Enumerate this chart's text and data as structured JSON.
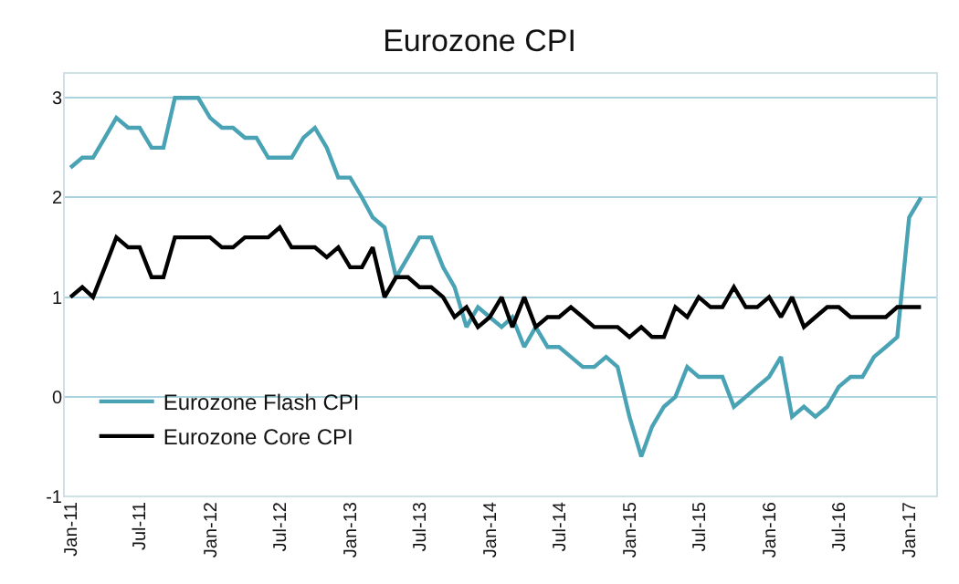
{
  "chart_data": {
    "type": "line",
    "title": "Eurozone CPI",
    "x": [
      "2011-01",
      "2011-02",
      "2011-03",
      "2011-04",
      "2011-05",
      "2011-06",
      "2011-07",
      "2011-08",
      "2011-09",
      "2011-10",
      "2011-11",
      "2011-12",
      "2012-01",
      "2012-02",
      "2012-03",
      "2012-04",
      "2012-05",
      "2012-06",
      "2012-07",
      "2012-08",
      "2012-09",
      "2012-10",
      "2012-11",
      "2012-12",
      "2013-01",
      "2013-02",
      "2013-03",
      "2013-04",
      "2013-05",
      "2013-06",
      "2013-07",
      "2013-08",
      "2013-09",
      "2013-10",
      "2013-11",
      "2013-12",
      "2014-01",
      "2014-02",
      "2014-03",
      "2014-04",
      "2014-05",
      "2014-06",
      "2014-07",
      "2014-08",
      "2014-09",
      "2014-10",
      "2014-11",
      "2014-12",
      "2015-01",
      "2015-02",
      "2015-03",
      "2015-04",
      "2015-05",
      "2015-06",
      "2015-07",
      "2015-08",
      "2015-09",
      "2015-10",
      "2015-11",
      "2015-12",
      "2016-01",
      "2016-02",
      "2016-03",
      "2016-04",
      "2016-05",
      "2016-06",
      "2016-07",
      "2016-08",
      "2016-09",
      "2016-10",
      "2016-11",
      "2016-12",
      "2017-01",
      "2017-02"
    ],
    "series": [
      {
        "name": "Eurozone Flash CPI",
        "color": "#4aa3b5",
        "values": [
          2.3,
          2.4,
          2.4,
          2.6,
          2.8,
          2.7,
          2.7,
          2.5,
          2.5,
          3.0,
          3.0,
          3.0,
          2.8,
          2.7,
          2.7,
          2.6,
          2.6,
          2.4,
          2.4,
          2.4,
          2.6,
          2.7,
          2.5,
          2.2,
          2.2,
          2.0,
          1.8,
          1.7,
          1.2,
          1.4,
          1.6,
          1.6,
          1.3,
          1.1,
          0.7,
          0.9,
          0.8,
          0.7,
          0.8,
          0.5,
          0.7,
          0.5,
          0.5,
          0.4,
          0.3,
          0.3,
          0.4,
          0.3,
          -0.2,
          -0.6,
          -0.3,
          -0.1,
          0.0,
          0.3,
          0.2,
          0.2,
          0.2,
          -0.1,
          0.0,
          0.1,
          0.2,
          0.4,
          -0.2,
          -0.1,
          -0.2,
          -0.1,
          0.1,
          0.2,
          0.2,
          0.4,
          0.5,
          0.6,
          1.8,
          2.0
        ]
      },
      {
        "name": "Eurozone Core CPI",
        "color": "#000000",
        "values": [
          1.0,
          1.1,
          1.0,
          1.3,
          1.6,
          1.5,
          1.5,
          1.2,
          1.2,
          1.6,
          1.6,
          1.6,
          1.6,
          1.5,
          1.5,
          1.6,
          1.6,
          1.6,
          1.7,
          1.5,
          1.5,
          1.5,
          1.4,
          1.5,
          1.3,
          1.3,
          1.5,
          1.0,
          1.2,
          1.2,
          1.1,
          1.1,
          1.0,
          0.8,
          0.9,
          0.7,
          0.8,
          1.0,
          0.7,
          1.0,
          0.7,
          0.8,
          0.8,
          0.9,
          0.8,
          0.7,
          0.7,
          0.7,
          0.6,
          0.7,
          0.6,
          0.6,
          0.9,
          0.8,
          1.0,
          0.9,
          0.9,
          1.1,
          0.9,
          0.9,
          1.0,
          0.8,
          1.0,
          0.7,
          0.8,
          0.9,
          0.9,
          0.8,
          0.8,
          0.8,
          0.8,
          0.9,
          0.9,
          0.9
        ]
      }
    ],
    "xlim": [
      "2010-12-15",
      "2017-03-15"
    ],
    "xticks": [
      {
        "value": "2011-01",
        "label": "Jan-11"
      },
      {
        "value": "2011-07",
        "label": "Jul-11"
      },
      {
        "value": "2012-01",
        "label": "Jan-12"
      },
      {
        "value": "2012-07",
        "label": "Jul-12"
      },
      {
        "value": "2013-01",
        "label": "Jan-13"
      },
      {
        "value": "2013-07",
        "label": "Jul-13"
      },
      {
        "value": "2014-01",
        "label": "Jan-14"
      },
      {
        "value": "2014-07",
        "label": "Jul-14"
      },
      {
        "value": "2015-01",
        "label": "Jan-15"
      },
      {
        "value": "2015-07",
        "label": "Jul-15"
      },
      {
        "value": "2016-01",
        "label": "Jan-16"
      },
      {
        "value": "2016-07",
        "label": "Jul-16"
      },
      {
        "value": "2017-01",
        "label": "Jan-17"
      }
    ],
    "ylim": [
      -1,
      3.25
    ],
    "yticks": [
      -1,
      0,
      1,
      2,
      3
    ],
    "grid": "y",
    "legend": "bottom left",
    "line_style": "solid",
    "marker": "none"
  }
}
